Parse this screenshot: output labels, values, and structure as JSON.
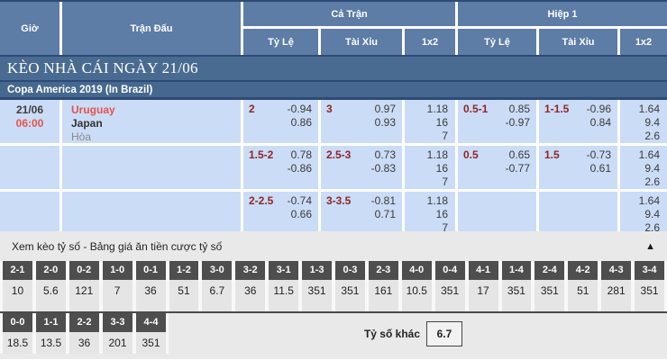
{
  "header": {
    "col_time": "Giờ",
    "col_match": "Trận Đấu",
    "group_full": "Cả Trận",
    "group_half": "Hiệp 1",
    "sub_handicap": "Tỷ Lệ",
    "sub_overunder": "Tài Xỉu",
    "sub_1x2": "1x2"
  },
  "section_title": "KÈO NHÀ CÁI NGÀY 21/06",
  "league_title": "Copa America 2019 (In Brazil)",
  "match": {
    "date": "21/06",
    "time": "06:00",
    "home": "Uruguay",
    "away": "Japan",
    "draw_label": "Hòa"
  },
  "odds_rows": [
    {
      "ft_hdp": "2",
      "ft_hdp_o1": "-0.94",
      "ft_hdp_o2": "0.86",
      "ft_ou": "3",
      "ft_ou_o1": "0.97",
      "ft_ou_o2": "0.93",
      "ft_1": "1.18",
      "ft_x": "16",
      "ft_2": "7",
      "h1_hdp": "0.5-1",
      "h1_hdp_o1": "0.85",
      "h1_hdp_o2": "-0.97",
      "h1_ou": "1-1.5",
      "h1_ou_o1": "-0.96",
      "h1_ou_o2": "0.84",
      "h1_1": "1.64",
      "h1_x": "9.4",
      "h1_2": "2.6"
    },
    {
      "ft_hdp": "1.5-2",
      "ft_hdp_o1": "0.78",
      "ft_hdp_o2": "-0.86",
      "ft_ou": "2.5-3",
      "ft_ou_o1": "0.73",
      "ft_ou_o2": "-0.83",
      "ft_1": "1.18",
      "ft_x": "16",
      "ft_2": "7",
      "h1_hdp": "0.5",
      "h1_hdp_o1": "0.65",
      "h1_hdp_o2": "-0.77",
      "h1_ou": "1.5",
      "h1_ou_o1": "-0.73",
      "h1_ou_o2": "0.61",
      "h1_1": "1.64",
      "h1_x": "9.4",
      "h1_2": "2.6"
    },
    {
      "ft_hdp": "2-2.5",
      "ft_hdp_o1": "-0.74",
      "ft_hdp_o2": "0.66",
      "ft_ou": "3-3.5",
      "ft_ou_o1": "-0.81",
      "ft_ou_o2": "0.71",
      "ft_1": "1.18",
      "ft_x": "16",
      "ft_2": "7",
      "h1_hdp": "",
      "h1_hdp_o1": "",
      "h1_hdp_o2": "",
      "h1_ou": "",
      "h1_ou_o1": "",
      "h1_ou_o2": "",
      "h1_1": "1.64",
      "h1_x": "9.4",
      "h1_2": "2.6"
    }
  ],
  "score": {
    "title": "Xem kèo tỷ số - Bảng giá ăn tiền cược tỷ số",
    "collapse_icon": "▲",
    "row1_scores": [
      "2-1",
      "2-0",
      "0-2",
      "1-0",
      "0-1",
      "1-2",
      "3-0",
      "3-2",
      "3-1",
      "1-3",
      "0-3",
      "2-3",
      "4-0",
      "0-4",
      "4-1",
      "1-4",
      "2-4",
      "4-2",
      "4-3",
      "3-4"
    ],
    "row1_odds": [
      "10",
      "5.6",
      "121",
      "7",
      "36",
      "51",
      "6.7",
      "36",
      "11.5",
      "351",
      "351",
      "161",
      "10.5",
      "351",
      "17",
      "351",
      "351",
      "51",
      "281",
      "351"
    ],
    "row2_scores": [
      "0-0",
      "1-1",
      "2-2",
      "3-3",
      "4-4"
    ],
    "row2_odds": [
      "18.5",
      "13.5",
      "36",
      "201",
      "351"
    ],
    "other_label": "Tỷ số khác",
    "other_value": "6.7"
  },
  "colors": {
    "header_blue": "#5d7ca6",
    "bar_blue": "#4a6b91",
    "navy": "#2c4a76",
    "row_blue": "#cbdcf6",
    "handicap_red": "#8f2626",
    "team_red": "#e2544c",
    "score_cell_dark": "#4e4e4e",
    "section_gray": "#e9e9e9"
  }
}
